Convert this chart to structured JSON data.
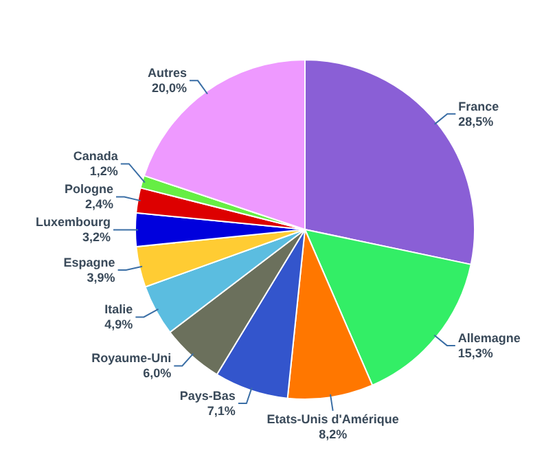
{
  "chart_data": {
    "type": "pie",
    "categories": [
      "France",
      "Allemagne",
      "Etats-Unis d'Amérique",
      "Pays-Bas",
      "Royaume-Uni",
      "Italie",
      "Espagne",
      "Luxembourg",
      "Pologne",
      "Canada",
      "Autres"
    ],
    "values": [
      28.5,
      15.3,
      8.2,
      7.1,
      6.0,
      4.9,
      3.9,
      3.2,
      2.4,
      1.2,
      20.0
    ],
    "value_labels": [
      "28,5%",
      "15,3%",
      "8,2%",
      "7,1%",
      "6,0%",
      "4,9%",
      "3,9%",
      "3,2%",
      "2,4%",
      "1,2%",
      "20,0%"
    ],
    "colors": [
      "#8a5fd6",
      "#33ee66",
      "#ff7700",
      "#3355cc",
      "#6b705c",
      "#5bbde0",
      "#ffcc33",
      "#0000dd",
      "#dd0000",
      "#66ee44",
      "#ee99ff"
    ],
    "legend": false
  }
}
